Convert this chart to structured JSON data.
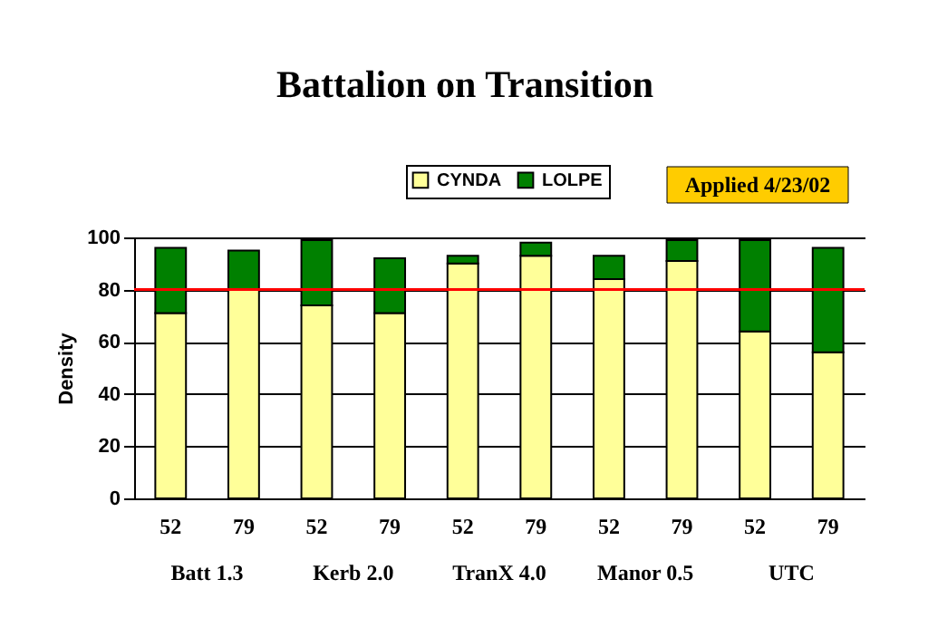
{
  "chart_data": {
    "type": "bar",
    "title": "Battalion on Transition",
    "ylabel": "Density",
    "categories": [
      "52",
      "79",
      "52",
      "79",
      "52",
      "79",
      "52",
      "79",
      "52",
      "79"
    ],
    "stacked": true,
    "series": [
      {
        "name": "CYNDA",
        "color": "#ffff99",
        "values": [
          71,
          80,
          74,
          71,
          90,
          93,
          84,
          91,
          64,
          56
        ]
      },
      {
        "name": "LOLPE",
        "color": "#008000",
        "values": [
          25,
          15,
          25,
          21,
          3,
          5,
          9,
          8,
          35,
          40
        ]
      }
    ],
    "ylim": [
      0,
      100
    ],
    "yticks": [
      0,
      20,
      40,
      60,
      80,
      100
    ],
    "grid": "y",
    "legend": "top",
    "ref_lines": [
      {
        "axis": "y",
        "value": 80,
        "color": "#ff0000"
      }
    ],
    "annotations": [
      "Applied 4/23/02",
      "Batt 1.3",
      "Kerb 2.0",
      "TranX 4.0",
      "Manor 0.5",
      "UTC"
    ]
  }
}
